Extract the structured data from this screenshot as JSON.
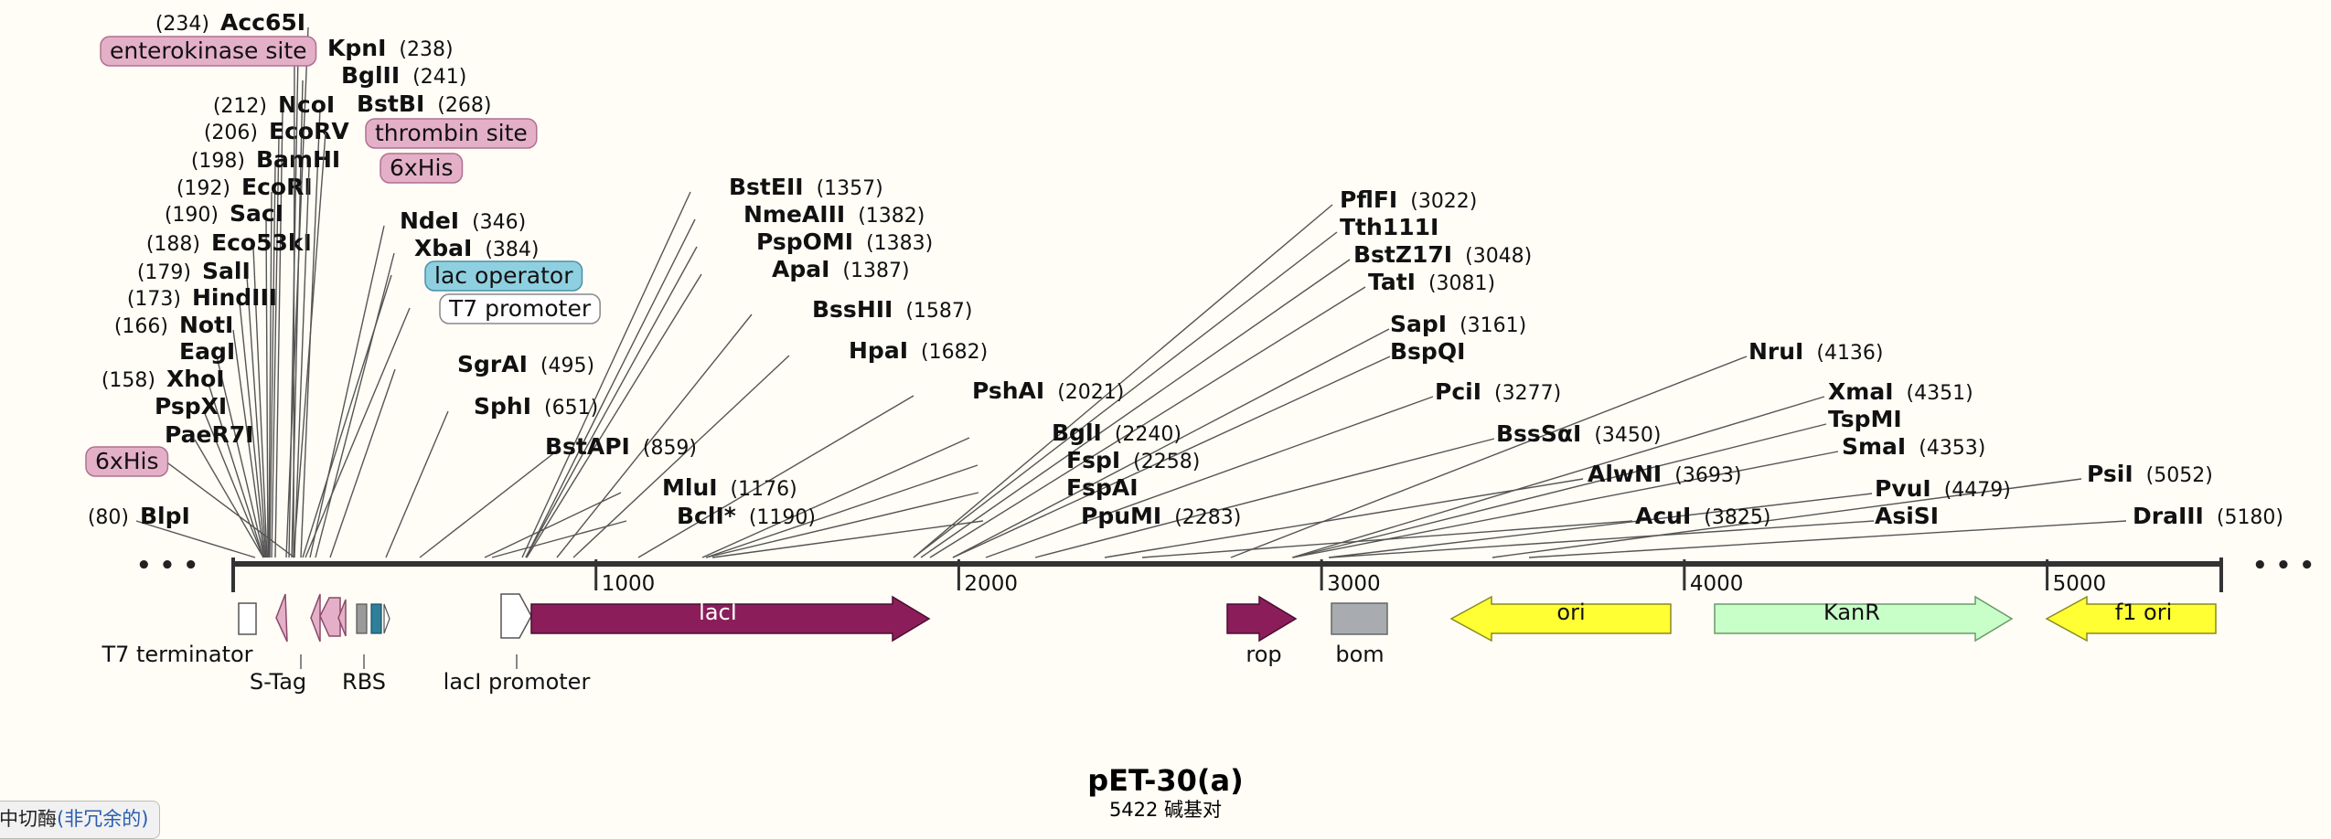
{
  "plasmid": {
    "name": "pET-30(a)",
    "length_label": "5422 碱基对",
    "length_bp": 5422
  },
  "ellipsis": "• • •",
  "corner_note": {
    "text": "中切酶",
    "link": "(非冗余的)"
  },
  "scale": {
    "view_bp": [
      0,
      5480
    ],
    "ticks": [
      "1000",
      "2000",
      "3000",
      "4000",
      "5000"
    ]
  },
  "enzymes": [
    {
      "name": "Acc65I",
      "pos": "(234)",
      "pos_side": "left",
      "bp": 234
    },
    {
      "name": "KpnI",
      "pos": "(238)",
      "pos_side": "right",
      "bp": 238
    },
    {
      "name": "BglII",
      "pos": "(241)",
      "pos_side": "right",
      "bp": 241
    },
    {
      "name": "NcoI",
      "pos": "(212)",
      "pos_side": "left",
      "bp": 212
    },
    {
      "name": "BstBI",
      "pos": "(268)",
      "pos_side": "right",
      "bp": 268
    },
    {
      "name": "EcoRV",
      "pos": "(206)",
      "pos_side": "left",
      "bp": 206
    },
    {
      "name": "BamHI",
      "pos": "(198)",
      "pos_side": "left",
      "bp": 198
    },
    {
      "name": "EcoRI",
      "pos": "(192)",
      "pos_side": "left",
      "bp": 192
    },
    {
      "name": "SacI",
      "pos": "(190)",
      "pos_side": "left",
      "bp": 190
    },
    {
      "name": "NdeI",
      "pos": "(346)",
      "pos_side": "right",
      "bp": 346
    },
    {
      "name": "Eco53kI",
      "pos": "(188)",
      "pos_side": "left",
      "bp": 188
    },
    {
      "name": "XbaI",
      "pos": "(384)",
      "pos_side": "right",
      "bp": 384
    },
    {
      "name": "SalI",
      "pos": "(179)",
      "pos_side": "left",
      "bp": 179
    },
    {
      "name": "HindIII",
      "pos": "(173)",
      "pos_side": "left",
      "bp": 173
    },
    {
      "name": "NotI",
      "pos": "(166)",
      "pos_side": "left",
      "bp": 166
    },
    {
      "name": "EagI",
      "pos": "",
      "pos_side": "left",
      "bp": 166
    },
    {
      "name": "XhoI",
      "pos": "(158)",
      "pos_side": "left",
      "bp": 158
    },
    {
      "name": "PspXI",
      "pos": "",
      "pos_side": "left",
      "bp": 158
    },
    {
      "name": "PaeR7I",
      "pos": "",
      "pos_side": "left",
      "bp": 158
    },
    {
      "name": "BlpI",
      "pos": "(80)",
      "pos_side": "left",
      "bp": 80
    },
    {
      "name": "SgrAI",
      "pos": "(495)",
      "pos_side": "right",
      "bp": 495
    },
    {
      "name": "SphI",
      "pos": "(651)",
      "pos_side": "right",
      "bp": 651
    },
    {
      "name": "BstAPI",
      "pos": "(859)",
      "pos_side": "right",
      "bp": 859
    },
    {
      "name": "MluI",
      "pos": "(1176)",
      "pos_side": "right",
      "bp": 1176
    },
    {
      "name": "BclI*",
      "pos": "(1190)",
      "pos_side": "right",
      "bp": 1190
    },
    {
      "name": "BstEII",
      "pos": "(1357)",
      "pos_side": "right",
      "bp": 1357
    },
    {
      "name": "NmeAIII",
      "pos": "(1382)",
      "pos_side": "right",
      "bp": 1382
    },
    {
      "name": "PspOMI",
      "pos": "(1383)",
      "pos_side": "right",
      "bp": 1383
    },
    {
      "name": "ApaI",
      "pos": "(1387)",
      "pos_side": "right",
      "bp": 1387
    },
    {
      "name": "BssHII",
      "pos": "(1587)",
      "pos_side": "right",
      "bp": 1587
    },
    {
      "name": "HpaI",
      "pos": "(1682)",
      "pos_side": "right",
      "bp": 1682
    },
    {
      "name": "PshAI",
      "pos": "(2021)",
      "pos_side": "right",
      "bp": 2021
    },
    {
      "name": "BglI",
      "pos": "(2240)",
      "pos_side": "right",
      "bp": 2240
    },
    {
      "name": "FspI",
      "pos": "(2258)",
      "pos_side": "right",
      "bp": 2258
    },
    {
      "name": "FspAI",
      "pos": "",
      "pos_side": "right",
      "bp": 2258
    },
    {
      "name": "PpuMI",
      "pos": "(2283)",
      "pos_side": "right",
      "bp": 2283
    },
    {
      "name": "PflFI",
      "pos": "(3022)",
      "pos_side": "right",
      "bp": 3022
    },
    {
      "name": "Tth111I",
      "pos": "",
      "pos_side": "right",
      "bp": 3022
    },
    {
      "name": "BstZ17I",
      "pos": "(3048)",
      "pos_side": "right",
      "bp": 3048
    },
    {
      "name": "TatI",
      "pos": "(3081)",
      "pos_side": "right",
      "bp": 3081
    },
    {
      "name": "SapI",
      "pos": "(3161)",
      "pos_side": "right",
      "bp": 3161
    },
    {
      "name": "BspQI",
      "pos": "",
      "pos_side": "right",
      "bp": 3161
    },
    {
      "name": "PciI",
      "pos": "(3277)",
      "pos_side": "right",
      "bp": 3277
    },
    {
      "name": "BssSαI",
      "pos": "(3450)",
      "pos_side": "right",
      "bp": 3450
    },
    {
      "name": "AlwNI",
      "pos": "(3693)",
      "pos_side": "right",
      "bp": 3693
    },
    {
      "name": "AcuI",
      "pos": "(3825)",
      "pos_side": "right",
      "bp": 3825
    },
    {
      "name": "NruI",
      "pos": "(4136)",
      "pos_side": "right",
      "bp": 4136
    },
    {
      "name": "XmaI",
      "pos": "(4351)",
      "pos_side": "right",
      "bp": 4351
    },
    {
      "name": "TspMI",
      "pos": "",
      "pos_side": "right",
      "bp": 4351
    },
    {
      "name": "SmaI",
      "pos": "(4353)",
      "pos_side": "right",
      "bp": 4353
    },
    {
      "name": "PvuI",
      "pos": "(4479)",
      "pos_side": "right",
      "bp": 4479
    },
    {
      "name": "AsiSI",
      "pos": "",
      "pos_side": "right",
      "bp": 4479
    },
    {
      "name": "PsiI",
      "pos": "(5052)",
      "pos_side": "right",
      "bp": 5052
    },
    {
      "name": "DraIII",
      "pos": "(5180)",
      "pos_side": "right",
      "bp": 5180
    }
  ],
  "site_tags": [
    {
      "label": "enterokinase site",
      "style": "pink",
      "bp": 215
    },
    {
      "label": "thrombin site",
      "style": "pink",
      "bp": 300
    },
    {
      "label": "6xHis",
      "style": "pink",
      "bp": 310
    },
    {
      "label": "lac operator",
      "style": "blue",
      "bp": 400
    },
    {
      "label": "T7 promoter",
      "style": "white",
      "bp": 430
    },
    {
      "label": "6xHis",
      "style": "pink",
      "bp": 140
    }
  ],
  "features": [
    {
      "label": "T7 terminator",
      "bp_start": 20,
      "bp_end": 70,
      "kind": "terminator"
    },
    {
      "label": "S-Tag",
      "bp_start": 130,
      "bp_end": 160,
      "kind": "small-left"
    },
    {
      "label": "RBS",
      "bp_start": 350,
      "bp_end": 370,
      "kind": "rbs"
    },
    {
      "label": "lacI promoter",
      "bp_start": 740,
      "bp_end": 820,
      "kind": "promoter-right"
    },
    {
      "label": "lacI",
      "bp_start": 820,
      "bp_end": 1900,
      "kind": "cds-right"
    },
    {
      "label": "rop",
      "bp_start": 2740,
      "bp_end": 2930,
      "kind": "cds-right"
    },
    {
      "label": "bom",
      "bp_start": 3000,
      "bp_end": 3150,
      "kind": "misc"
    },
    {
      "label": "ori",
      "bp_start": 3320,
      "bp_end": 3910,
      "kind": "ori-left"
    },
    {
      "label": "KanR",
      "bp_start": 4040,
      "bp_end": 4850,
      "kind": "cds-kanr"
    },
    {
      "label": "f1 ori",
      "bp_start": 4920,
      "bp_end": 5375,
      "kind": "ori-left"
    }
  ],
  "colors": {
    "pink_tag": "#e4b0c8",
    "blue_tag": "#8fd0e0",
    "lacI": "#8b1e5a",
    "ori": "#ffff33",
    "KanR": "#c8ffc8",
    "bom": "#a8acb0",
    "backbone": "#333333"
  }
}
